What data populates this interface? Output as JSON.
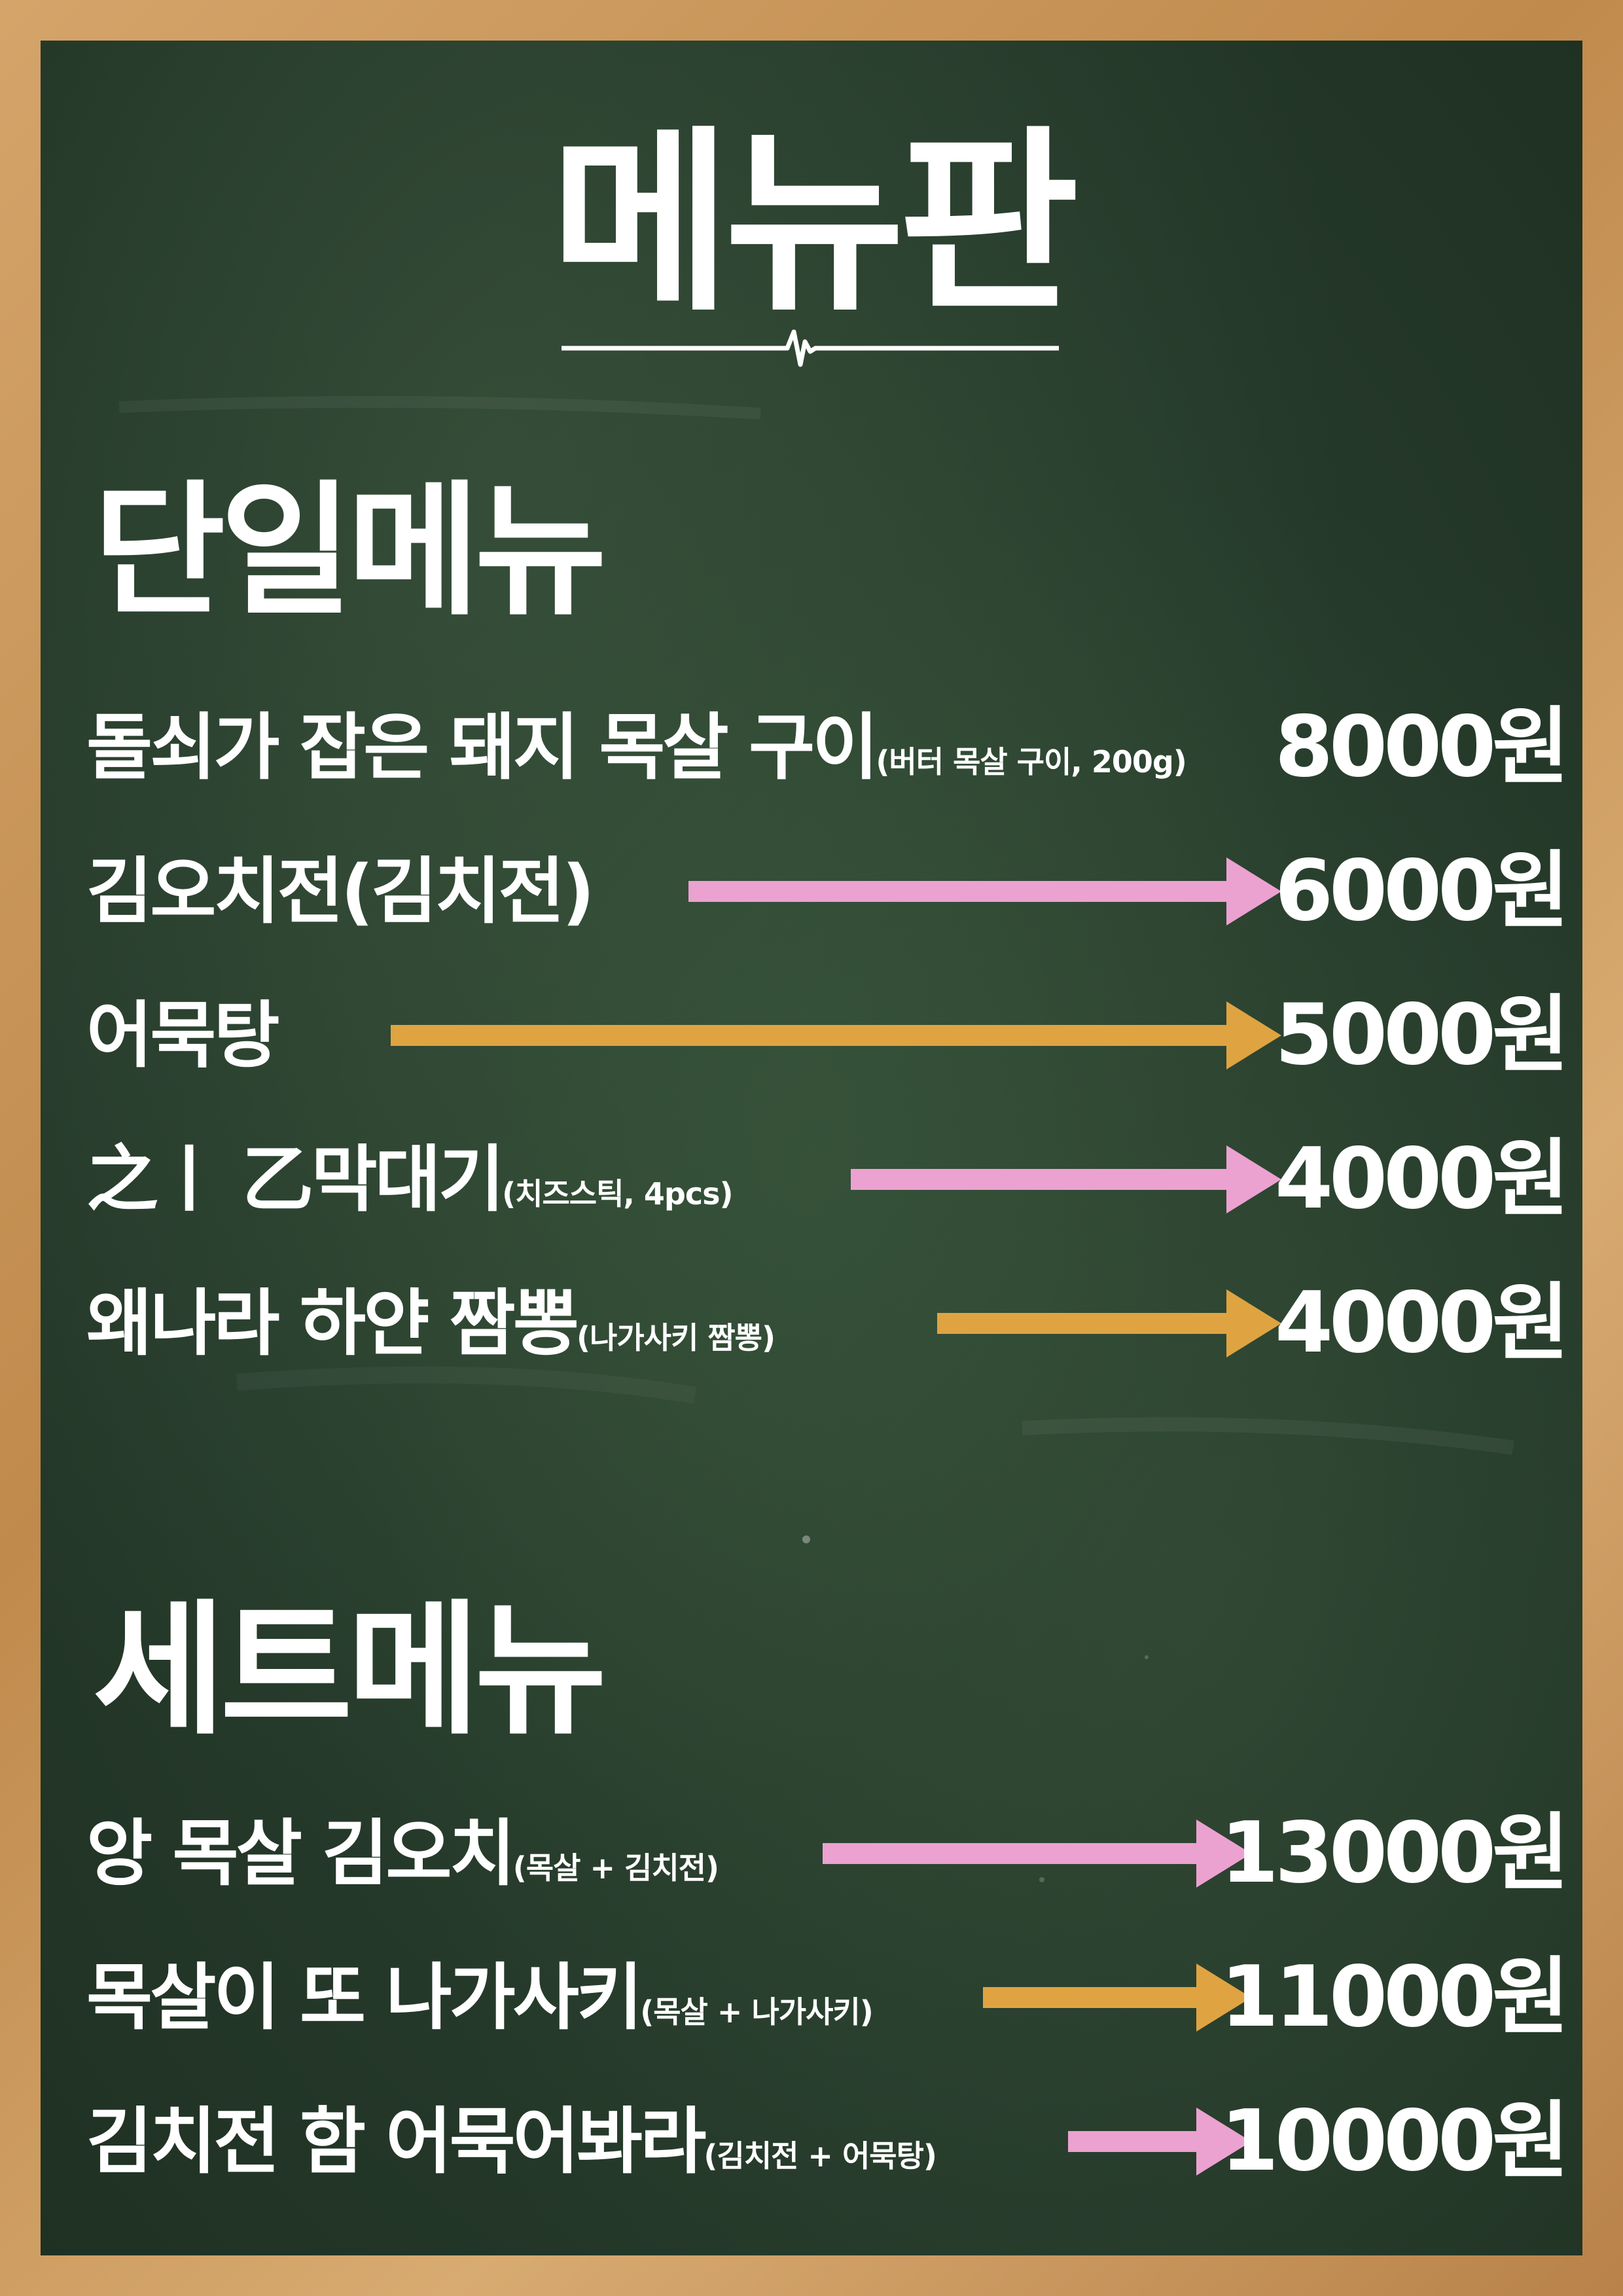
{
  "title": "메뉴판",
  "sections": [
    {
      "title": "단일메뉴",
      "items": [
        {
          "name": "돌쇠가 잡은 돼지 목살 구이",
          "note": "(버터 목살 구이, 200g)",
          "price": "8000원",
          "arrow": "none"
        },
        {
          "name": "김오치전(김치전)",
          "note": "",
          "price": "6000원",
          "arrow": "pink"
        },
        {
          "name": "어묵탕",
          "note": "",
          "price": "5000원",
          "arrow": "orange"
        },
        {
          "name": "之ㅣ 乙막대기",
          "note": "(치즈스틱, 4pcs)",
          "price": "4000원",
          "arrow": "pink"
        },
        {
          "name": "왜나라 하얀 짬뽕",
          "note": "(나가사키 짬뽕)",
          "price": "4000원",
          "arrow": "orange"
        }
      ]
    },
    {
      "title": "세트메뉴",
      "items": [
        {
          "name": "앙 목살 김오치",
          "note": "(목살 + 김치전)",
          "price": "13000원",
          "arrow": "pink"
        },
        {
          "name": "목살이 또 나가사키",
          "note": "(목살 + 나가사키)",
          "price": "11000원",
          "arrow": "orange"
        },
        {
          "name": "김치전 함 어묵어봐라",
          "note": "(김치전 + 어묵탕)",
          "price": "10000원",
          "arrow": "pink"
        }
      ]
    }
  ],
  "colors": {
    "board": "#25392a",
    "frame": "#c9945a",
    "text": "#ffffff",
    "arrow_pink": "#eba2d0",
    "arrow_orange": "#dfa441"
  }
}
